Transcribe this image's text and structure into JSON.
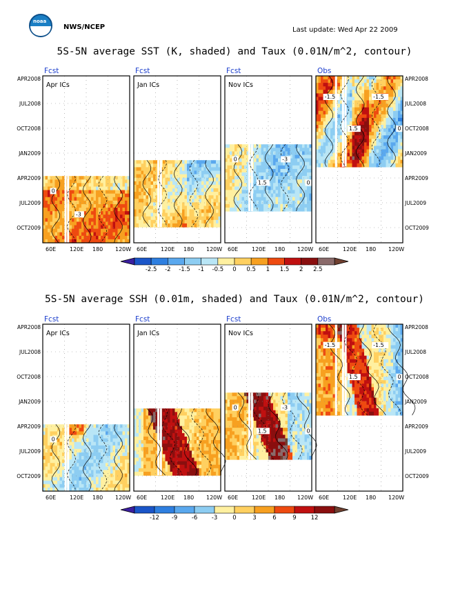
{
  "header": {
    "logo_text": "noaa",
    "agency": "NWS/NCEP",
    "last_update": "Last update: Wed Apr 22 2009"
  },
  "colors": {
    "cbar": [
      "#3b1fa0",
      "#1a55c8",
      "#2e7fe0",
      "#5aa8ee",
      "#8dcdf2",
      "#b9e6f6",
      "#fff0a0",
      "#ffd060",
      "#f7a020",
      "#ee4a10",
      "#c01010",
      "#8a0f0f",
      "#8a6a6a",
      "#704030"
    ],
    "contour": "#000000",
    "axis_text": "#000000",
    "panel_label": "#1c3ecc"
  },
  "chart_data": [
    {
      "type": "heatmap",
      "title": "5S-5N average SST (K, shaded) and Taux (0.01N/m^2, contour)",
      "panel_labels": [
        "Fcst",
        "Fcst",
        "Fcst",
        "Obs"
      ],
      "ic_labels": [
        "Apr ICs",
        "Jan ICs",
        "Nov ICs",
        ""
      ],
      "y_ticks": [
        "APR2008",
        "JUL2008",
        "OCT2008",
        "JAN2009",
        "APR2009",
        "JUL2009",
        "OCT2009"
      ],
      "x_ticks": [
        "60E",
        "120E",
        "180",
        "120W"
      ],
      "colorbar_ticks": [
        "-2.5",
        "-2",
        "-1.5",
        "-1",
        "-0.5",
        "0",
        "0.5",
        "1",
        "1.5",
        "2",
        "2.5"
      ],
      "contour_labels": {
        "panel1": [
          "0",
          "-3"
        ],
        "panel3": [
          "0",
          "1.5",
          "-3",
          "0"
        ],
        "panel4": [
          "-1.5",
          "1.5",
          "-1.5",
          "0"
        ]
      }
    },
    {
      "type": "heatmap",
      "title": "5S-5N average SSH (0.01m, shaded) and Taux (0.01N/m^2, contour)",
      "panel_labels": [
        "Fcst",
        "Fcst",
        "Fcst",
        "Obs"
      ],
      "ic_labels": [
        "Apr ICs",
        "Jan ICs",
        "Nov ICs",
        ""
      ],
      "y_ticks": [
        "APR2008",
        "JUL2008",
        "OCT2008",
        "JAN2009",
        "APR2009",
        "JUL2009",
        "OCT2009"
      ],
      "x_ticks": [
        "60E",
        "120E",
        "180",
        "120W"
      ],
      "colorbar_ticks": [
        "-12",
        "-9",
        "-6",
        "-3",
        "0",
        "3",
        "6",
        "9",
        "12"
      ],
      "contour_labels": {
        "panel1": [
          "0"
        ],
        "panel3": [
          "0",
          "1.5",
          "-3",
          "0"
        ],
        "panel4": [
          "-1.5",
          "1.5",
          "-1.5",
          "0"
        ]
      }
    }
  ]
}
